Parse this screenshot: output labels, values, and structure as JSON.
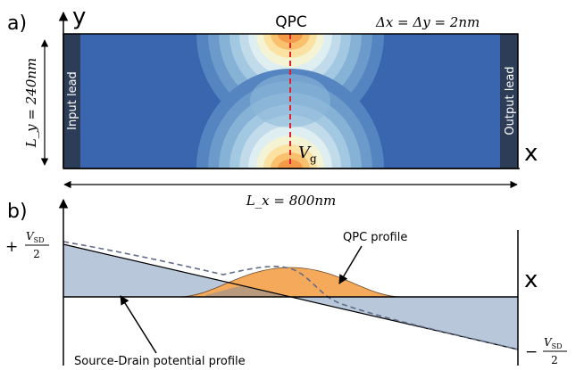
{
  "panel_a": {
    "letter": "a)",
    "y_axis_letter": "y",
    "x_axis_letter": "x",
    "qpc_label": "QPC",
    "grid_spacing": "Δx = Δy = 2nm",
    "ly_label": "L_y = 240nm",
    "lx_label": "L_x = 800nm",
    "input_lead": "Input lead",
    "output_lead": "Output lead",
    "gate_label": "V",
    "gate_subscript": "g",
    "colors": {
      "background": "#3a66b0",
      "lead": "#2e3d57",
      "gate_line": "#e0202a"
    }
  },
  "panel_b": {
    "letter": "b)",
    "x_axis_letter": "x",
    "vsd_plus": "+",
    "vsd_minus": "−",
    "vsd_symbol": "V",
    "vsd_subscript": "SD",
    "vsd_denominator": "2",
    "qpc_profile_label": "QPC profile",
    "sd_profile_label": "Source-Drain potential profile",
    "colors": {
      "sd_fill": "#b8c7da",
      "qpc_fill": "#f5a95b",
      "overlap_fill": "#b99a7c",
      "dashed": "#5f6b86"
    }
  }
}
